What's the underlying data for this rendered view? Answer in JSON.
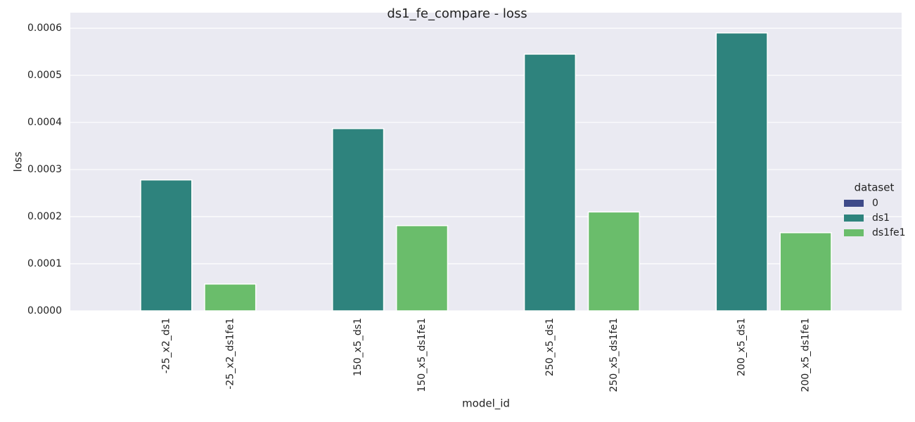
{
  "chart_data": {
    "type": "bar",
    "title": "ds1_fe_compare - loss",
    "xlabel": "model_id",
    "ylabel": "loss",
    "categories": [
      null,
      "-25_x2_ds1",
      "-25_x2_ds1fe1",
      null,
      "150_x5_ds1",
      "150_x5_ds1fe1",
      null,
      "250_x5_ds1",
      "250_x5_ds1fe1",
      null,
      "200_x5_ds1",
      "200_x5_ds1fe1",
      null
    ],
    "series": [
      {
        "name": "0",
        "color": "#3e4a89",
        "values": [
          null,
          null,
          null,
          null,
          null,
          null,
          null,
          null,
          null,
          null,
          null,
          null,
          null
        ]
      },
      {
        "name": "ds1",
        "color": "#2e837d",
        "values": [
          null,
          0.000278,
          null,
          null,
          0.000387,
          null,
          null,
          0.000545,
          null,
          null,
          0.00059,
          null,
          null
        ]
      },
      {
        "name": "ds1fe1",
        "color": "#6abd6b",
        "values": [
          null,
          null,
          5.7e-05,
          null,
          null,
          0.000181,
          null,
          null,
          0.00021,
          null,
          null,
          0.000166,
          null
        ]
      }
    ],
    "legend_title": "dataset",
    "ylim": [
      0,
      0.000633
    ],
    "yticks": [
      {
        "value": 0,
        "label": "0.0000"
      },
      {
        "value": 0.0001,
        "label": "0.0001"
      },
      {
        "value": 0.0002,
        "label": "0.0002"
      },
      {
        "value": 0.0003,
        "label": "0.0003"
      },
      {
        "value": 0.0004,
        "label": "0.0004"
      },
      {
        "value": 0.0005,
        "label": "0.0005"
      },
      {
        "value": 0.0006,
        "label": "0.0006"
      }
    ],
    "grid": true,
    "legend": "right"
  }
}
